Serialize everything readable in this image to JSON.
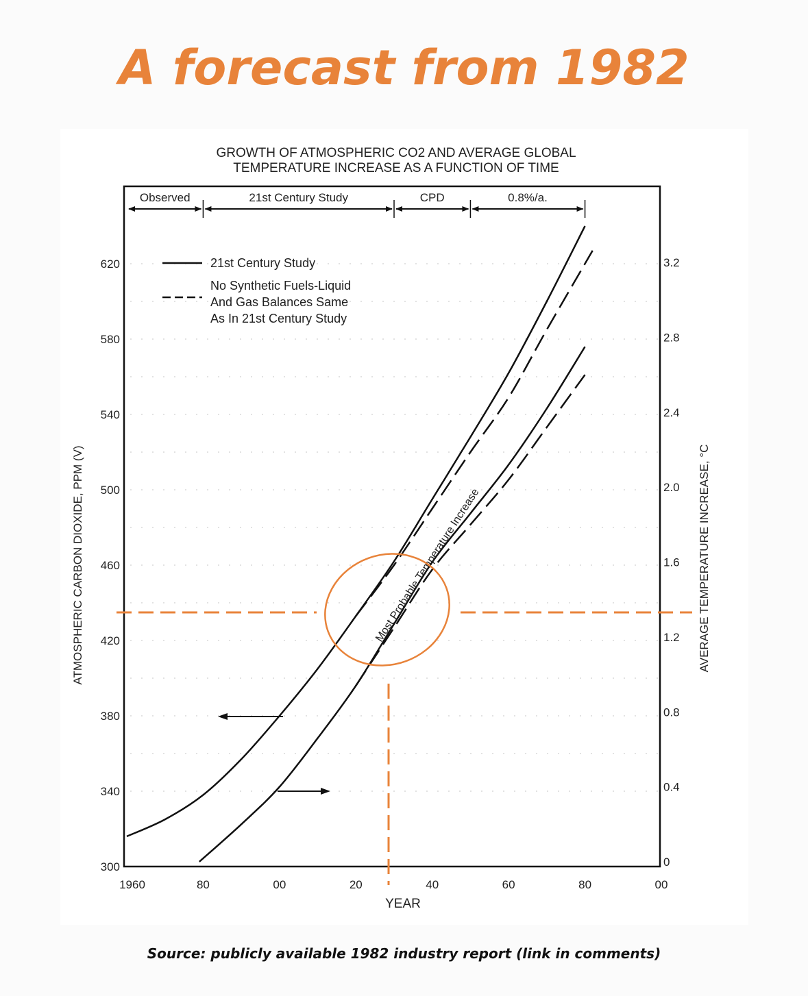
{
  "headline": "A forecast from 1982",
  "footer": "Source: publicly available 1982 industry report (link in comments)",
  "colors": {
    "accent": "#E8833A",
    "ink": "#1a1a1a"
  },
  "chart_data": {
    "type": "line",
    "title_line1": "GROWTH OF ATMOSPHERIC CO2 AND AVERAGE GLOBAL",
    "title_line2": "TEMPERATURE INCREASE AS A FUNCTION OF TIME",
    "xlabel": "YEAR",
    "ylabel_left": "ATMOSPHERIC CARBON DIOXIDE, PPM (V)",
    "ylabel_right": "AVERAGE TEMPERATURE INCREASE, °C",
    "xlim": [
      1960,
      2100
    ],
    "ylim_left": [
      300,
      640
    ],
    "ylim_right": [
      0,
      3.4
    ],
    "x_ticks": [
      {
        "v": 1960,
        "label": "1960"
      },
      {
        "v": 1980,
        "label": "80"
      },
      {
        "v": 2000,
        "label": "00"
      },
      {
        "v": 2020,
        "label": "20"
      },
      {
        "v": 2040,
        "label": "40"
      },
      {
        "v": 2060,
        "label": "60"
      },
      {
        "v": 2080,
        "label": "80"
      },
      {
        "v": 2100,
        "label": "00"
      }
    ],
    "y_left_ticks": [
      "300",
      "340",
      "380",
      "420",
      "460",
      "500",
      "540",
      "580",
      "620"
    ],
    "y_right_ticks": [
      "0",
      "0.4",
      "0.8",
      "1.2",
      "1.6",
      "2.0",
      "2.4",
      "2.8",
      "3.2"
    ],
    "periods": [
      {
        "label": "Observed",
        "from": 1960,
        "to": 1980
      },
      {
        "label": "21st Century Study",
        "from": 1980,
        "to": 2030
      },
      {
        "label": "CPD",
        "from": 2030,
        "to": 2050
      },
      {
        "label": "0.8%/a.",
        "from": 2050,
        "to": 2080
      }
    ],
    "legend": {
      "solid": "21st Century Study",
      "dashed_lines": [
        "No Synthetic Fuels-Liquid",
        "And Gas Balances Same",
        "As In 21st Century Study"
      ]
    },
    "annotation": "Most Probable Temperature Increase",
    "series": [
      {
        "name": "21st Century Study",
        "quantity": "CO2 (ppm)",
        "axis": "left",
        "style": "solid",
        "x": [
          1960,
          1970,
          1980,
          1990,
          2000,
          2010,
          2020,
          2030,
          2040,
          2050,
          2060,
          2070,
          2080
        ],
        "y": [
          316,
          325,
          338,
          357,
          380,
          405,
          433,
          462,
          495,
          528,
          562,
          600,
          640
        ]
      },
      {
        "name": "No Synthetic Fuels-Liquid And Gas Balances Same As In 21st Century Study",
        "quantity": "CO2 (ppm)",
        "axis": "left",
        "style": "dashed",
        "x": [
          2020,
          2030,
          2040,
          2050,
          2060,
          2070,
          2082
        ],
        "y": [
          433,
          460,
          490,
          520,
          549,
          585,
          627
        ]
      },
      {
        "name": "21st Century Study",
        "quantity": "Temperature increase (°C)",
        "axis": "right",
        "style": "solid",
        "x": [
          1979,
          1990,
          2000,
          2010,
          2020,
          2030,
          2040,
          2050,
          2060,
          2070,
          2080
        ],
        "y": [
          0,
          0.2,
          0.4,
          0.66,
          0.94,
          1.27,
          1.6,
          1.86,
          2.12,
          2.42,
          2.75
        ]
      },
      {
        "name": "No Synthetic Fuels-Liquid And Gas Balances Same As In 21st Century Study",
        "quantity": "Temperature increase (°C)",
        "axis": "right",
        "style": "dashed",
        "x": [
          2020,
          2030,
          2040,
          2050,
          2060,
          2070,
          2080
        ],
        "y": [
          0.94,
          1.25,
          1.56,
          1.8,
          2.04,
          2.32,
          2.6
        ]
      }
    ],
    "overlay": {
      "highlight_year": 2028,
      "highlight_temp": 1.35,
      "highlight_co2": 435
    }
  }
}
